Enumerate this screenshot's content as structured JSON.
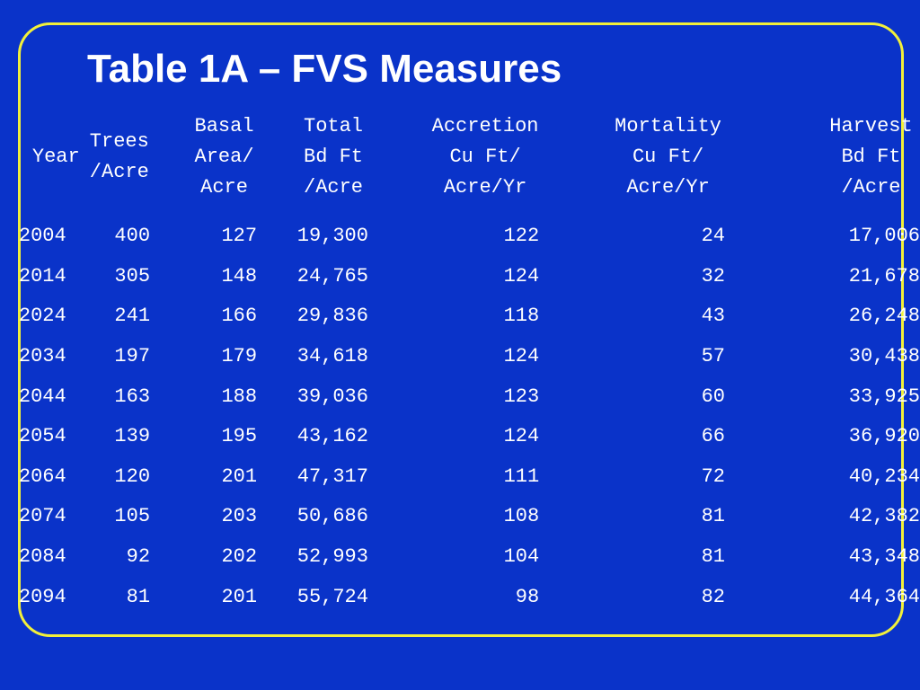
{
  "slide": {
    "title": "Table 1A – FVS Measures"
  },
  "table": {
    "headers": [
      "Year",
      "Trees\n/Acre",
      "Basal\nArea/\nAcre",
      "Total\nBd Ft\n/Acre",
      "Accretion\nCu Ft/\nAcre/Yr",
      "Mortality\nCu Ft/\nAcre/Yr",
      "Harvest\nBd Ft\n/Acre"
    ],
    "rows": [
      [
        "2004",
        "400",
        "127",
        "19,300",
        "122",
        "24",
        "17,006"
      ],
      [
        "2014",
        "305",
        "148",
        "24,765",
        "124",
        "32",
        "21,678"
      ],
      [
        "2024",
        "241",
        "166",
        "29,836",
        "118",
        "43",
        "26,248"
      ],
      [
        "2034",
        "197",
        "179",
        "34,618",
        "124",
        "57",
        "30,438"
      ],
      [
        "2044",
        "163",
        "188",
        "39,036",
        "123",
        "60",
        "33,925"
      ],
      [
        "2054",
        "139",
        "195",
        "43,162",
        "124",
        "66",
        "36,920"
      ],
      [
        "2064",
        "120",
        "201",
        "47,317",
        "111",
        "72",
        "40,234"
      ],
      [
        "2074",
        "105",
        "203",
        "50,686",
        "108",
        "81",
        "42,382"
      ],
      [
        "2084",
        "92",
        "202",
        "52,993",
        "104",
        "81",
        "43,348"
      ],
      [
        "2094",
        "81",
        "201",
        "55,724",
        "98",
        "82",
        "44,364"
      ]
    ]
  },
  "colors": {
    "background": "#0a33c9",
    "border": "#f2f03a",
    "text": "#ffffff"
  }
}
